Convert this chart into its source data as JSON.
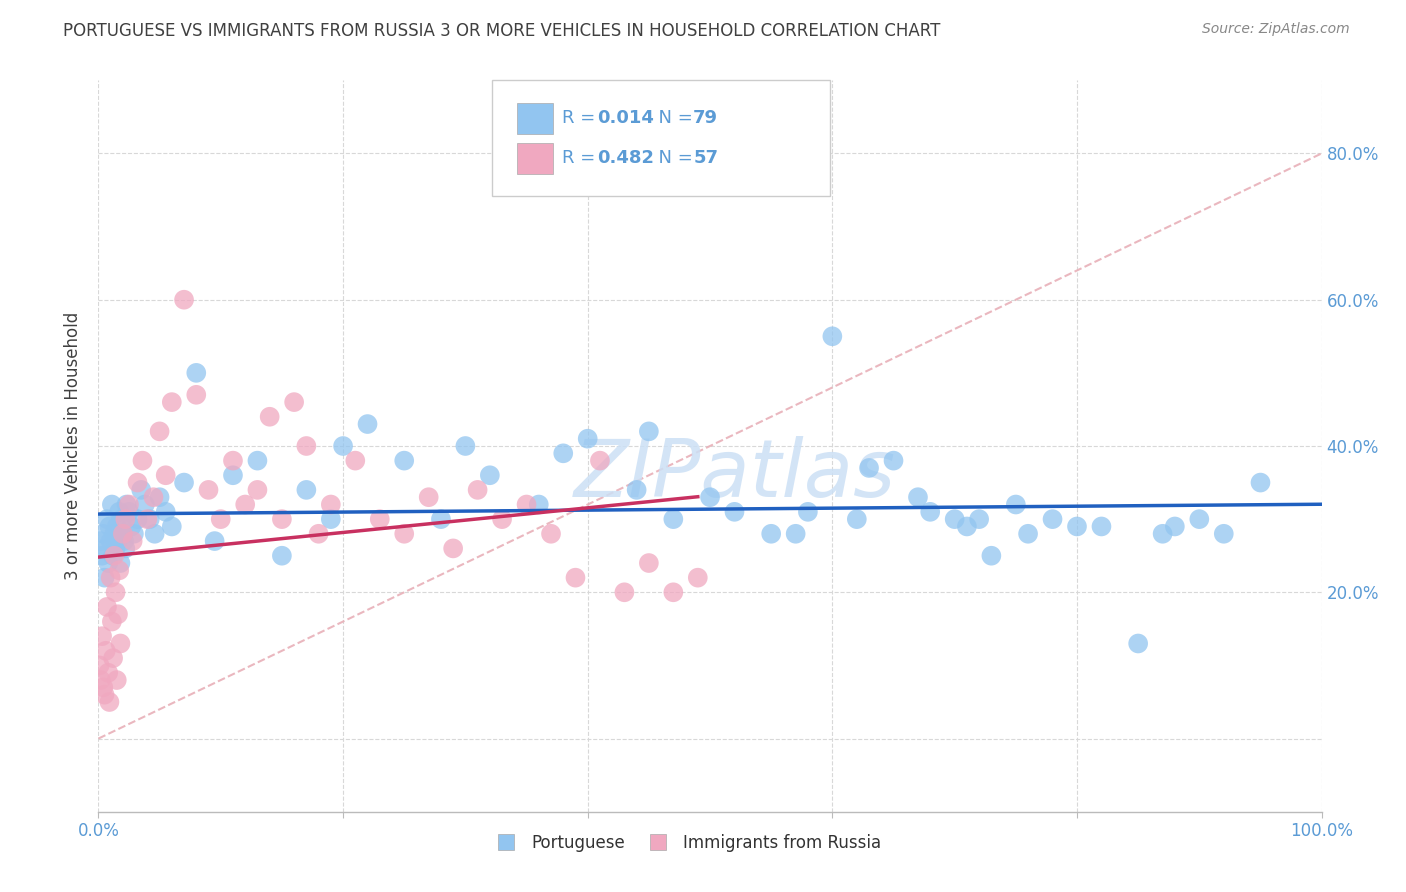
{
  "title": "PORTUGUESE VS IMMIGRANTS FROM RUSSIA 3 OR MORE VEHICLES IN HOUSEHOLD CORRELATION CHART",
  "source": "Source: ZipAtlas.com",
  "ylabel": "3 or more Vehicles in Household",
  "legend_blue_r": "0.014",
  "legend_blue_n": "79",
  "legend_pink_r": "0.482",
  "legend_pink_n": "57",
  "blue_label": "Portuguese",
  "pink_label": "Immigrants from Russia",
  "blue_color": "#92c5f0",
  "pink_color": "#f0a8c0",
  "blue_line_color": "#2060c0",
  "pink_line_color": "#c83060",
  "diag_line_color": "#e8b0b8",
  "grid_color": "#d8d8d8",
  "background_color": "#ffffff",
  "title_color": "#404040",
  "source_color": "#888888",
  "axis_tick_color": "#5b9bd5",
  "legend_text_color": "#5b9bd5",
  "watermark_color": "#cce0f5",
  "xlim": [
    0,
    100
  ],
  "ylim": [
    -10,
    90
  ],
  "blue_x": [
    0.2,
    0.3,
    0.4,
    0.5,
    0.6,
    0.7,
    0.8,
    0.9,
    1.0,
    1.1,
    1.2,
    1.3,
    1.4,
    1.5,
    1.6,
    1.7,
    1.8,
    1.9,
    2.0,
    2.1,
    2.2,
    2.3,
    2.5,
    2.7,
    2.9,
    3.2,
    3.5,
    3.8,
    4.2,
    4.6,
    5.0,
    5.5,
    6.0,
    7.0,
    8.0,
    9.5,
    11.0,
    13.0,
    15.0,
    17.0,
    19.0,
    22.0,
    25.0,
    28.0,
    32.0,
    36.0,
    40.0,
    44.0,
    47.0,
    50.0,
    55.0,
    60.0,
    62.0,
    65.0,
    70.0,
    73.0,
    75.0,
    80.0,
    85.0,
    90.0,
    92.0,
    95.0,
    20.0,
    30.0,
    45.0,
    38.0,
    52.0,
    57.0,
    68.0,
    72.0,
    78.0,
    82.0,
    87.0,
    58.0,
    63.0,
    67.0,
    71.0,
    76.0,
    88.0
  ],
  "blue_y": [
    27,
    25,
    28,
    22,
    26,
    30,
    24,
    29,
    27,
    32,
    25,
    28,
    26,
    29,
    27,
    31,
    24,
    30,
    28,
    27,
    26,
    32,
    31,
    29,
    28,
    30,
    34,
    32,
    30,
    28,
    33,
    31,
    29,
    35,
    50,
    27,
    36,
    38,
    25,
    34,
    30,
    43,
    38,
    30,
    36,
    32,
    41,
    34,
    30,
    33,
    28,
    55,
    30,
    38,
    30,
    25,
    32,
    29,
    13,
    30,
    28,
    35,
    40,
    40,
    42,
    39,
    31,
    28,
    31,
    30,
    30,
    29,
    28,
    31,
    37,
    33,
    29,
    28,
    29
  ],
  "pink_x": [
    0.1,
    0.2,
    0.3,
    0.4,
    0.5,
    0.6,
    0.7,
    0.8,
    0.9,
    1.0,
    1.1,
    1.2,
    1.3,
    1.4,
    1.5,
    1.6,
    1.7,
    1.8,
    2.0,
    2.2,
    2.5,
    2.8,
    3.2,
    3.6,
    4.0,
    4.5,
    5.0,
    5.5,
    6.0,
    7.0,
    8.0,
    9.0,
    10.0,
    11.0,
    12.0,
    13.0,
    14.0,
    15.0,
    16.0,
    17.0,
    18.0,
    19.0,
    21.0,
    23.0,
    25.0,
    27.0,
    29.0,
    31.0,
    33.0,
    35.0,
    37.0,
    39.0,
    41.0,
    43.0,
    45.0,
    47.0,
    49.0
  ],
  "pink_y": [
    10,
    8,
    14,
    7,
    6,
    12,
    18,
    9,
    5,
    22,
    16,
    11,
    25,
    20,
    8,
    17,
    23,
    13,
    28,
    30,
    32,
    27,
    35,
    38,
    30,
    33,
    42,
    36,
    46,
    60,
    47,
    34,
    30,
    38,
    32,
    34,
    44,
    30,
    46,
    40,
    28,
    32,
    38,
    30,
    28,
    33,
    26,
    34,
    30,
    32,
    28,
    22,
    38,
    20,
    24,
    20,
    22
  ]
}
